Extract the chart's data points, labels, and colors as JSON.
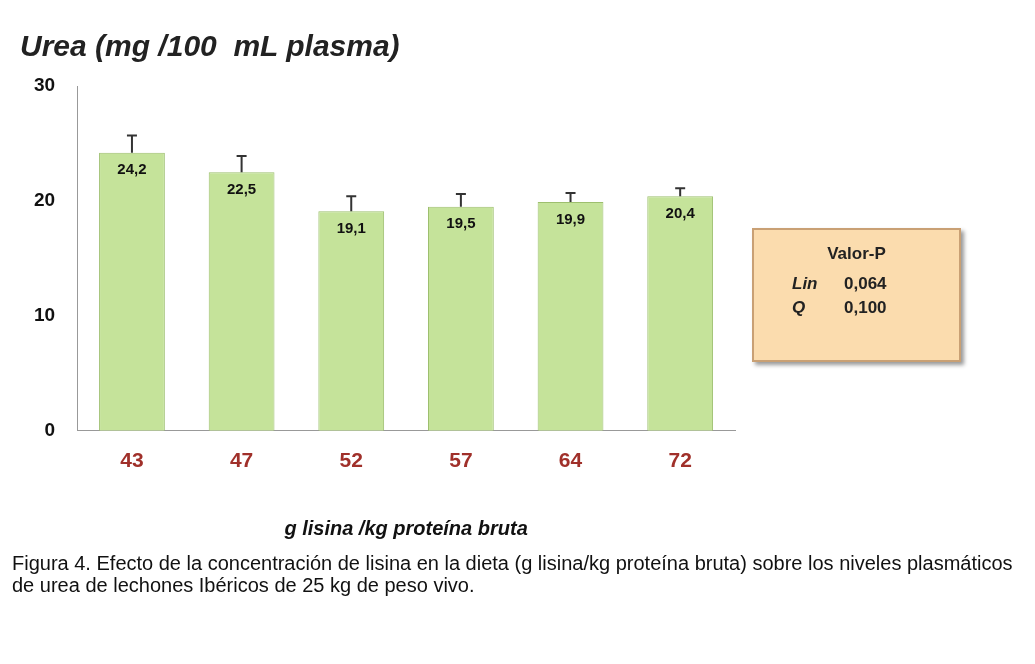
{
  "chart_data": {
    "type": "bar",
    "title": "Urea (mg /100  mL plasma)",
    "xlabel": "g lisina /kg proteína bruta",
    "categories": [
      "43",
      "47",
      "52",
      "57",
      "64",
      "72"
    ],
    "values": [
      24.2,
      22.5,
      19.1,
      19.5,
      19.9,
      20.4
    ],
    "value_labels": [
      "24,2",
      "22,5",
      "19,1",
      "19,5",
      "19,9",
      "20,4"
    ],
    "errors": [
      [
        24.2,
        25.7
      ],
      [
        22.5,
        23.9
      ],
      [
        19.1,
        20.4
      ],
      [
        19.5,
        20.6
      ],
      [
        19.9,
        20.7
      ],
      [
        20.4,
        21.1
      ]
    ],
    "color": "#c5e39a",
    "ylim": [
      0,
      30
    ],
    "yticks": [
      0,
      10,
      20,
      30
    ],
    "grid": false,
    "legend": false,
    "annotations": [
      "Valor-P",
      "Lin 0,064",
      "Q 0,100",
      "Figura 4. Efecto de la concentración de lisina en la dieta (g lisina/kg proteína bruta) sobre los niveles plasmáticos de urea de lechones Ibéricos de 25 kg de peso vivo."
    ]
  }
}
